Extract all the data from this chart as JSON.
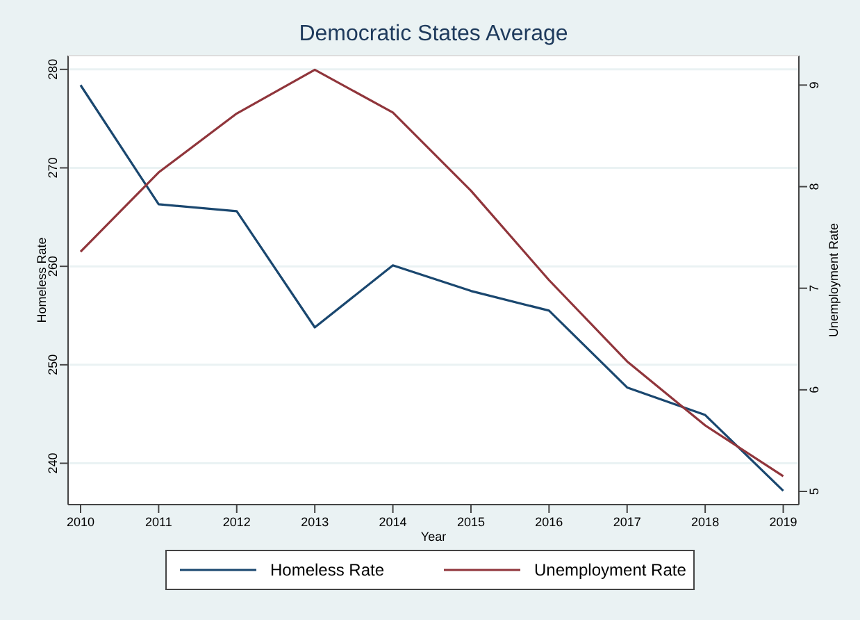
{
  "chart_data": {
    "type": "line",
    "title": "Democratic States Average",
    "xlabel": "Year",
    "ylabel": "Homeless Rate",
    "y2label": "Unemployment Rate",
    "x": [
      2010,
      2011,
      2012,
      2013,
      2014,
      2015,
      2016,
      2017,
      2018,
      2019
    ],
    "xlim": [
      2009.84,
      2019.2
    ],
    "xticks": [
      2010,
      2011,
      2012,
      2013,
      2014,
      2015,
      2016,
      2017,
      2018,
      2019
    ],
    "ylim": [
      235.8,
      281.4
    ],
    "yticks": [
      240,
      250,
      260,
      270,
      280
    ],
    "y2lim": [
      4.87,
      9.29
    ],
    "y2ticks": [
      5,
      6,
      7,
      8,
      9
    ],
    "grid": "y",
    "legend": "bottom",
    "marker": "none",
    "line_style": "solid",
    "series": [
      {
        "name": "Homeless Rate",
        "color": "#1a476f",
        "values": [
          278.4,
          266.3,
          265.6,
          253.8,
          260.1,
          257.5,
          255.5,
          247.7,
          244.9,
          237.2
        ]
      },
      {
        "name": "Unemployment Rate",
        "color": "#90353b",
        "axis": "y2",
        "values": [
          7.36,
          8.14,
          8.72,
          9.15,
          8.73,
          7.96,
          7.08,
          6.28,
          5.65,
          5.15
        ]
      }
    ]
  }
}
